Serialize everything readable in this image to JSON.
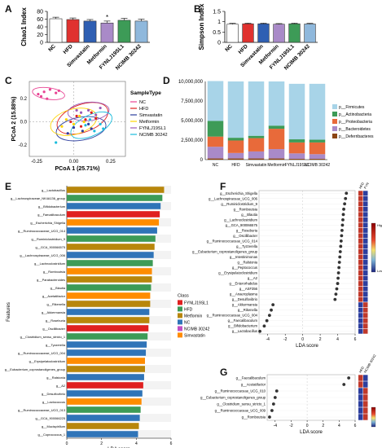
{
  "panel_labels": {
    "A": "A",
    "B": "B",
    "C": "C",
    "D": "D",
    "E": "E",
    "F": "F",
    "G": "G"
  },
  "chart_data": [
    {
      "panel": "A",
      "type": "bar",
      "ylabel": "Chao1 Index",
      "ylim": [
        0,
        80
      ],
      "yticks": [
        0,
        20,
        40,
        60,
        80
      ],
      "categories": [
        "NC",
        "HFD",
        "Simvastatin",
        "Metformin",
        "FYNLJ19SL1",
        "NCIMB 30242"
      ],
      "values": [
        61,
        59,
        55,
        50,
        57,
        55
      ],
      "errors": [
        4,
        4,
        4,
        5,
        5,
        5
      ],
      "colors": [
        "#ffffff",
        "#e0322f",
        "#2f5fb3",
        "#a98ac8",
        "#3d9b57",
        "#8fb8dc"
      ],
      "annotation": "*"
    },
    {
      "panel": "B",
      "type": "bar",
      "ylabel": "Simpson Index",
      "ylim": [
        0,
        1.5
      ],
      "yticks": [
        0.0,
        0.5,
        1.0,
        1.5
      ],
      "categories": [
        "NC",
        "HFD",
        "Simvastatin",
        "Metformin",
        "FYNLJ19SL1",
        "NCIMB 30242"
      ],
      "values": [
        0.88,
        0.9,
        0.9,
        0.88,
        0.9,
        0.89
      ],
      "errors": [
        0.04,
        0.03,
        0.03,
        0.03,
        0.03,
        0.03
      ],
      "colors": [
        "#ffffff",
        "#e0322f",
        "#2f5fb3",
        "#a98ac8",
        "#3d9b57",
        "#8fb8dc"
      ]
    },
    {
      "panel": "C",
      "type": "scatter",
      "xlabel": "PCoA 1 (25.71%)",
      "ylabel": "PCoA 2 (15.88%)",
      "xlim": [
        -0.3,
        0.35
      ],
      "ylim": [
        -0.3,
        0.35
      ],
      "xticks": [
        -0.25,
        0.0,
        0.25
      ],
      "yticks": [
        -0.2,
        0.0,
        0.2
      ],
      "legend_title": "SampleType",
      "series": [
        {
          "name": "NC",
          "color": "#e84393",
          "points": [
            [
              -0.2,
              0.26
            ],
            [
              -0.16,
              0.28
            ],
            [
              -0.12,
              0.25
            ],
            [
              -0.22,
              0.22
            ],
            [
              -0.18,
              0.2
            ],
            [
              -0.1,
              0.27
            ],
            [
              -0.24,
              0.24
            ]
          ]
        },
        {
          "name": "HFD",
          "color": "#e02020",
          "points": [
            [
              0.02,
              0.05
            ],
            [
              0.08,
              0.02
            ],
            [
              0.12,
              0.08
            ],
            [
              -0.02,
              0.0
            ],
            [
              0.05,
              -0.04
            ],
            [
              0.15,
              0.03
            ]
          ]
        },
        {
          "name": "Simvastatin",
          "color": "#2c3e9e",
          "points": [
            [
              0.0,
              -0.05
            ],
            [
              0.06,
              -0.08
            ],
            [
              0.1,
              -0.02
            ],
            [
              -0.04,
              -0.1
            ],
            [
              0.12,
              -0.06
            ]
          ]
        },
        {
          "name": "Metformin",
          "color": "#ffd400",
          "points": [
            [
              -0.05,
              0.02
            ],
            [
              0.0,
              -0.02
            ],
            [
              0.04,
              0.05
            ],
            [
              -0.08,
              -0.04
            ],
            [
              0.07,
              0.0
            ]
          ]
        },
        {
          "name": "FYNLJ19SL1",
          "color": "#9b59b6",
          "points": [
            [
              0.05,
              0.08
            ],
            [
              0.1,
              0.1
            ],
            [
              0.15,
              0.06
            ],
            [
              0.02,
              0.1
            ],
            [
              0.18,
              0.12
            ]
          ]
        },
        {
          "name": "NCIMB 30242",
          "color": "#1abcdc",
          "points": [
            [
              0.08,
              -0.03
            ],
            [
              0.14,
              -0.08
            ],
            [
              0.18,
              -0.02
            ],
            [
              0.11,
              0.02
            ],
            [
              0.2,
              -0.06
            ],
            [
              -0.12,
              -0.18
            ]
          ]
        }
      ],
      "ellipses": [
        {
          "series": "NC",
          "cx": -0.17,
          "cy": 0.245,
          "rx": 0.11,
          "ry": 0.05,
          "angle": -8
        },
        {
          "series": "HFD",
          "cx": 0.06,
          "cy": 0.03,
          "rx": 0.18,
          "ry": 0.12,
          "angle": 20
        },
        {
          "series": "Simvastatin",
          "cx": 0.05,
          "cy": -0.06,
          "rx": 0.17,
          "ry": 0.1,
          "angle": 10
        },
        {
          "series": "Metformin",
          "cx": 0.0,
          "cy": 0.0,
          "rx": 0.16,
          "ry": 0.11,
          "angle": 15
        },
        {
          "series": "FYNLJ19SL1",
          "cx": 0.1,
          "cy": 0.09,
          "rx": 0.14,
          "ry": 0.08,
          "angle": 5
        },
        {
          "series": "NCIMB 30242",
          "cx": 0.12,
          "cy": -0.03,
          "rx": 0.15,
          "ry": 0.09,
          "angle": 25
        }
      ]
    },
    {
      "panel": "D",
      "type": "bar",
      "stacked": true,
      "ylim": [
        0,
        10000000
      ],
      "yticks": [
        0,
        2500000,
        5000000,
        7500000,
        10000000
      ],
      "ytick_labels": [
        "0",
        "2,500,000",
        "5,000,000",
        "7,500,000",
        "10,000,000"
      ],
      "categories": [
        "NC",
        "HFD",
        "Simvastatin",
        "Metformin",
        "FYNLJ19SL1",
        "NCIMB 30242"
      ],
      "series": [
        {
          "name": "p__Deferribacteres",
          "color": "#8b4513",
          "values": [
            150000,
            150000,
            150000,
            150000,
            100000,
            100000
          ]
        },
        {
          "name": "p__Bacteroidetes",
          "color": "#a98ac8",
          "values": [
            1500000,
            700000,
            900000,
            1200000,
            700000,
            600000
          ]
        },
        {
          "name": "p__Proteobacteria",
          "color": "#e86a3a",
          "values": [
            1300000,
            1600000,
            1700000,
            2600000,
            1400000,
            1500000
          ]
        },
        {
          "name": "p__Actinobacteria",
          "color": "#3d9b57",
          "values": [
            2000000,
            350000,
            300000,
            400000,
            400000,
            350000
          ]
        },
        {
          "name": "p__Firmicutes",
          "color": "#a8d4e8",
          "values": [
            5100000,
            7200000,
            6950000,
            5650000,
            7100000,
            7150000
          ]
        }
      ]
    },
    {
      "panel": "E",
      "type": "bar",
      "orientation": "horizontal",
      "xlabel": "LDA score",
      "ylabel": "Features",
      "xlim": [
        0,
        6
      ],
      "xticks": [
        0,
        2,
        4,
        6
      ],
      "legend_title": "Class",
      "classes": [
        {
          "name": "FYNLJ19SL1",
          "color": "#e02020"
        },
        {
          "name": "HFD",
          "color": "#3d9b57"
        },
        {
          "name": "Metformin",
          "color": "#b8860b"
        },
        {
          "name": "NC",
          "color": "#2f74b8"
        },
        {
          "name": "NCIMB 30242",
          "color": "#c04fc4"
        },
        {
          "name": "Simvastatin",
          "color": "#ff8c00"
        }
      ],
      "features": [
        {
          "label": "g__Lactobacillus",
          "value": 5.6,
          "class": "Metformin"
        },
        {
          "label": "g__Lachnospiraceae_NK4A136_group",
          "value": 5.5,
          "class": "HFD"
        },
        {
          "label": "g__Bifidobacterium",
          "value": 5.4,
          "class": "NC"
        },
        {
          "label": "g__Faecalibaculum",
          "value": 5.35,
          "class": "FYNLJ19SL1"
        },
        {
          "label": "g__Escherichia_Shigella",
          "value": 5.3,
          "class": "Simvastatin"
        },
        {
          "label": "g__Ruminococcaceae_UCG_014",
          "value": 5.2,
          "class": "NC"
        },
        {
          "label": "g__Ruminiclostridium_9",
          "value": 5.1,
          "class": "HFD"
        },
        {
          "label": "g__GCA_900066575",
          "value": 5.05,
          "class": "Metformin"
        },
        {
          "label": "g__Lachnospiraceae_UCG_006",
          "value": 5.0,
          "class": "NC"
        },
        {
          "label": "g__Lachnoclostridium",
          "value": 4.95,
          "class": "HFD"
        },
        {
          "label": "g__Romboutsia",
          "value": 4.9,
          "class": "Simvastatin"
        },
        {
          "label": "g__Parabacteroides",
          "value": 4.9,
          "class": "Metformin"
        },
        {
          "label": "g__Blautia",
          "value": 4.85,
          "class": "HFD"
        },
        {
          "label": "g__Acetatifactor",
          "value": 4.8,
          "class": "Simvastatin"
        },
        {
          "label": "g__Rikenella",
          "value": 4.8,
          "class": "Metformin"
        },
        {
          "label": "g__Akkermansia",
          "value": 4.75,
          "class": "NC"
        },
        {
          "label": "g__Roseburia",
          "value": 4.75,
          "class": "Metformin"
        },
        {
          "label": "g__Oscillibacter",
          "value": 4.7,
          "class": "FYNLJ19SL1"
        },
        {
          "label": "g__Clostridium_sensu_stricto_1",
          "value": 4.65,
          "class": "HFD"
        },
        {
          "label": "g__Tyzzerella",
          "value": 4.6,
          "class": "NC"
        },
        {
          "label": "g__Ruminococcaceae_UCG_004",
          "value": 4.55,
          "class": "NC"
        },
        {
          "label": "g__Erysipelatoclostridium",
          "value": 4.5,
          "class": "Simvastatin"
        },
        {
          "label": "g__Eubacterium_coprostanoligenes_group",
          "value": 4.5,
          "class": "Metformin"
        },
        {
          "label": "g__Ralstonia",
          "value": 4.45,
          "class": "NC"
        },
        {
          "label": "g__A2",
          "value": 4.4,
          "class": "FYNLJ19SL1"
        },
        {
          "label": "g__Desulfovibrio",
          "value": 4.35,
          "class": "NC"
        },
        {
          "label": "g__Lactococcus",
          "value": 4.3,
          "class": "Simvastatin"
        },
        {
          "label": "g__Ruminococcaceae_UCG_013",
          "value": 4.25,
          "class": "HFD"
        },
        {
          "label": "g__GCA_900066225",
          "value": 4.2,
          "class": "NC"
        },
        {
          "label": "g__Mucispirillum",
          "value": 4.15,
          "class": "Metformin"
        },
        {
          "label": "g__Coprococcus_1",
          "value": 4.1,
          "class": "NC"
        }
      ]
    },
    {
      "panel": "F",
      "type": "scatter",
      "xlabel": "LDA score",
      "xlim": [
        -5,
        6
      ],
      "xticks": [
        -4,
        -2,
        0,
        2,
        4,
        6
      ],
      "heat_header": [
        "HFD",
        "FYN"
      ],
      "heat_legend": [
        "High",
        "Low"
      ],
      "features": [
        {
          "label": "g__Escherichia_Shigella",
          "value": 5.0,
          "heat": [
            "#c0392b",
            "#2c3e9e"
          ]
        },
        {
          "label": "g__Lachnospiraceae_UCG_006",
          "value": 4.9,
          "heat": [
            "#c0392b",
            "#2c3e9e"
          ]
        },
        {
          "label": "g__Ruminiclostridium_9",
          "value": 4.8,
          "heat": [
            "#c0392b",
            "#2c3e9e"
          ]
        },
        {
          "label": "g__Romboutsia",
          "value": 4.7,
          "heat": [
            "#c0392b",
            "#2c3e9e"
          ]
        },
        {
          "label": "g__Blautia",
          "value": 4.65,
          "heat": [
            "#c0392b",
            "#2c3e9e"
          ]
        },
        {
          "label": "g__Lachnoclostridium",
          "value": 4.6,
          "heat": [
            "#c0392b",
            "#2c3e9e"
          ]
        },
        {
          "label": "g__GCA_900066575",
          "value": 4.55,
          "heat": [
            "#c0392b",
            "#2c3e9e"
          ]
        },
        {
          "label": "g__Roseburia",
          "value": 4.5,
          "heat": [
            "#c0392b",
            "#2c3e9e"
          ]
        },
        {
          "label": "g__Oscillibacter",
          "value": 4.45,
          "heat": [
            "#c0392b",
            "#2c3e9e"
          ]
        },
        {
          "label": "g__Ruminococcaceae_UCG_014",
          "value": 4.4,
          "heat": [
            "#c0392b",
            "#2c3e9e"
          ]
        },
        {
          "label": "g__Tyzzerella",
          "value": 4.35,
          "heat": [
            "#c0392b",
            "#2c3e9e"
          ]
        },
        {
          "label": "g__Eubacterium_coprostanoligenes_group",
          "value": 4.3,
          "heat": [
            "#c0392b",
            "#2c3e9e"
          ]
        },
        {
          "label": "g__Intestinimonas",
          "value": 4.25,
          "heat": [
            "#c0392b",
            "#2c3e9e"
          ]
        },
        {
          "label": "g__Ralstonia",
          "value": 4.2,
          "heat": [
            "#c0392b",
            "#2c3e9e"
          ]
        },
        {
          "label": "g__Peptococcus",
          "value": 4.15,
          "heat": [
            "#c0392b",
            "#2c3e9e"
          ]
        },
        {
          "label": "g__Erysipelatoclostridium",
          "value": 4.1,
          "heat": [
            "#c0392b",
            "#2c3e9e"
          ]
        },
        {
          "label": "g__A2",
          "value": 4.05,
          "heat": [
            "#c0392b",
            "#2c3e9e"
          ]
        },
        {
          "label": "g__Enterorhabdus",
          "value": 4.0,
          "heat": [
            "#c0392b",
            "#2c3e9e"
          ]
        },
        {
          "label": "g__ASF356",
          "value": 3.9,
          "heat": [
            "#c0392b",
            "#2c3e9e"
          ]
        },
        {
          "label": "g__Anaeroplasma",
          "value": 3.8,
          "heat": [
            "#c0392b",
            "#2c3e9e"
          ]
        },
        {
          "label": "g__Desulfovibrio",
          "value": 3.7,
          "heat": [
            "#c0392b",
            "#2c3e9e"
          ]
        },
        {
          "label": "g__Akkermansia",
          "value": -3.4,
          "heat": [
            "#2c3e9e",
            "#c0392b"
          ]
        },
        {
          "label": "g__Rikenella",
          "value": -3.6,
          "heat": [
            "#2c3e9e",
            "#c0392b"
          ]
        },
        {
          "label": "g__Ruminococcaceae_UCG_004",
          "value": -3.8,
          "heat": [
            "#2c3e9e",
            "#c0392b"
          ]
        },
        {
          "label": "g__Faecalibaculum",
          "value": -4.1,
          "heat": [
            "#2c3e9e",
            "#c0392b"
          ]
        },
        {
          "label": "g__Bifidobacterium",
          "value": -4.4,
          "heat": [
            "#2c3e9e",
            "#c0392b"
          ]
        },
        {
          "label": "g__Lactobacillus",
          "value": -4.9,
          "heat": [
            "#2c3e9e",
            "#c0392b"
          ]
        }
      ]
    },
    {
      "panel": "G",
      "type": "scatter",
      "xlabel": "LDA score",
      "xlim": [
        -5,
        6
      ],
      "xticks": [
        -4,
        -2,
        0,
        2,
        4,
        6
      ],
      "heat_header": [
        "HFD",
        "NCIMB 30242"
      ],
      "features": [
        {
          "label": "g__Faecalibaculum",
          "value": 5.2,
          "heat": [
            "#c0392b",
            "#2c3e9e"
          ]
        },
        {
          "label": "g__Acetatifactor",
          "value": 4.6,
          "heat": [
            "#c0392b",
            "#2c3e9e"
          ]
        },
        {
          "label": "g__Ruminococcaceae_UCG_010",
          "value": -3.8,
          "heat": [
            "#2c3e9e",
            "#c0392b"
          ]
        },
        {
          "label": "g__Eubacterium_coprostanoligenes_group",
          "value": -4.0,
          "heat": [
            "#2c3e9e",
            "#c0392b"
          ]
        },
        {
          "label": "g__Clostridium_sensu_stricto_1",
          "value": -4.2,
          "heat": [
            "#2c3e9e",
            "#c0392b"
          ]
        },
        {
          "label": "g__Ruminococcaceae_UCG_009",
          "value": -4.4,
          "heat": [
            "#2c3e9e",
            "#c0392b"
          ]
        },
        {
          "label": "g__Romboutsia",
          "value": -4.7,
          "heat": [
            "#2c3e9e",
            "#c0392b"
          ]
        }
      ]
    }
  ]
}
